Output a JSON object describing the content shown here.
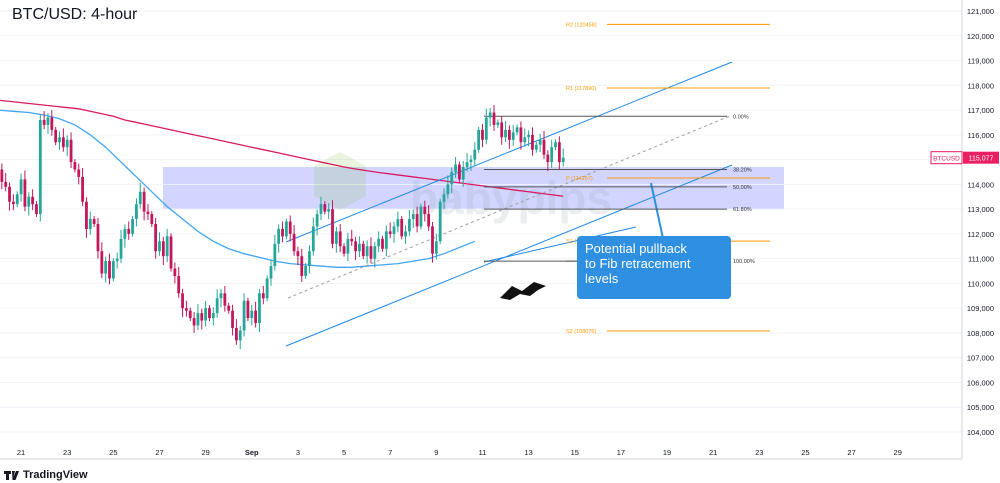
{
  "header": {
    "title": "BTC/USD: 4-hour"
  },
  "footer": {
    "brand": "TradingView"
  },
  "callout": {
    "line1": "Potential pullback",
    "line2": "to Fib retracement levels"
  },
  "watermark": {
    "text": "babypips"
  },
  "price_tag": {
    "symbol": "BTCUSD",
    "value": "115,077",
    "color": "#e91e63"
  },
  "colors": {
    "up": "#26a69a",
    "down": "#c2185b",
    "ma200": "#d81b60",
    "ma100": "#42a5f5",
    "channel": "#1e88e5",
    "pivot": "#ff9800",
    "zone": "#b3b9ff",
    "callout": "#2f8fe0"
  },
  "chart_data": {
    "type": "candlestick",
    "instrument": "BTC/USD",
    "timeframe": "4-hour",
    "y_axis": {
      "ylim": [
        103500,
        121400
      ],
      "ticks": [
        "121,000",
        "120,000",
        "119,000",
        "118,000",
        "117,000",
        "116,000",
        "115,000",
        "114,000",
        "113,000",
        "112,000",
        "111,000",
        "110,000",
        "109,000",
        "108,000",
        "107,000",
        "106,000",
        "105,000",
        "104,000"
      ],
      "tick_values": [
        121000,
        120000,
        119000,
        118000,
        117000,
        116000,
        115000,
        114000,
        113000,
        112000,
        111000,
        110000,
        109000,
        108000,
        107000,
        106000,
        105000,
        104000
      ]
    },
    "x_axis": {
      "ticks": [
        "21",
        "23",
        "25",
        "27",
        "29",
        "Sep",
        "3",
        "5",
        "7",
        "9",
        "11",
        "13",
        "15",
        "17",
        "19",
        "21",
        "23",
        "25",
        "27",
        "29"
      ],
      "tick_index": [
        6,
        18,
        30,
        42,
        54,
        66,
        78,
        90,
        102,
        114,
        126,
        138,
        150,
        162,
        174,
        186,
        198,
        210,
        222,
        234
      ]
    },
    "series_close": [
      114600,
      114100,
      113900,
      113300,
      113200,
      113600,
      114200,
      113100,
      113500,
      113200,
      112800,
      116600,
      116400,
      116700,
      116200,
      115700,
      115900,
      115500,
      115800,
      114900,
      114600,
      114300,
      113300,
      112200,
      112600,
      112400,
      111300,
      110400,
      110900,
      110200,
      110900,
      111000,
      111800,
      112200,
      112000,
      112600,
      113200,
      113700,
      112900,
      112800,
      112400,
      111300,
      111700,
      111100,
      111900,
      110600,
      110300,
      109600,
      109000,
      108900,
      108600,
      108300,
      108800,
      108500,
      109000,
      108600,
      108800,
      109400,
      109600,
      109100,
      108900,
      108200,
      107700,
      108100,
      109300,
      108600,
      108900,
      108400,
      109600,
      109400,
      110200,
      110700,
      111600,
      112200,
      111900,
      112500,
      112000,
      111300,
      111100,
      110300,
      110700,
      111300,
      112300,
      112800,
      113200,
      112900,
      113000,
      111600,
      112100,
      111500,
      111200,
      111800,
      111700,
      111300,
      111600,
      111100,
      111500,
      111000,
      111500,
      111800,
      111400,
      112100,
      112000,
      112300,
      112600,
      111900,
      112100,
      112600,
      112800,
      112300,
      113100,
      112800,
      112300,
      111200,
      111700,
      113300,
      113600,
      114000,
      114500,
      114800,
      114200,
      114700,
      114900,
      115000,
      115400,
      116200,
      115800,
      116700,
      116900,
      116400,
      116500,
      115900,
      116200,
      115800,
      116100,
      116300,
      115700,
      115900,
      116000,
      115400,
      115600,
      115800,
      115200,
      114900,
      115500,
      115700,
      114900,
      115077
    ],
    "ma_200": [
      117400,
      117350,
      117300,
      117250,
      117200,
      117150,
      117100,
      117050,
      116950,
      116850,
      116750,
      116600,
      116500,
      116400,
      116300,
      116200,
      116100,
      116000,
      115900,
      115800,
      115700,
      115600,
      115500,
      115400,
      115300,
      115200,
      115100,
      115000,
      114900,
      114800,
      114700,
      114620,
      114550,
      114480,
      114420,
      114360,
      114300,
      114240,
      114180,
      114120,
      114060,
      114000,
      113940,
      113880,
      113820,
      113760,
      113700,
      113640,
      113580,
      113520
    ],
    "ma_100": [
      117000,
      116950,
      116900,
      116800,
      116650,
      116400,
      116000,
      115500,
      114900,
      114300,
      113700,
      113100,
      112600,
      112100,
      111700,
      111400,
      111200,
      111050,
      110900,
      110800,
      110750,
      110700,
      110650,
      110650,
      110700,
      110750,
      110800,
      110900,
      111000,
      111200,
      111450,
      111700
    ],
    "annotations": {
      "fibonacci": [
        {
          "label": "0.00%",
          "price": 116750
        },
        {
          "label": "38.20%",
          "price": 114600
        },
        {
          "label": "50.00%",
          "price": 113900
        },
        {
          "label": "61.80%",
          "price": 113000
        },
        {
          "label": "100.00%",
          "price": 110900
        }
      ],
      "pivots": [
        {
          "label": "R2 (120458)",
          "price": 120458
        },
        {
          "label": "R1 (117890)",
          "price": 117890
        },
        {
          "label": "P (114257)",
          "price": 114257
        },
        {
          "label": "S1 (111708)",
          "price": 111708
        },
        {
          "label": "S2 (108076)",
          "price": 108076
        }
      ],
      "support_zone": [
        113000,
        114700
      ],
      "channel": "ascending"
    }
  }
}
